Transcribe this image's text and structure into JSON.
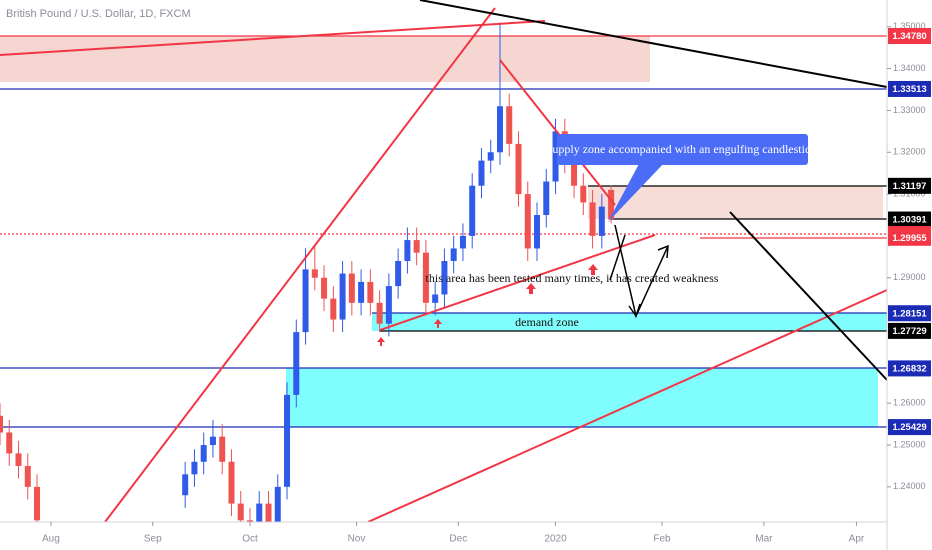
{
  "chart_data": {
    "type": "candlestick",
    "title": "British Pound / U.S. Dollar, 1D, FXCM",
    "x": [
      0,
      2,
      4,
      6,
      8,
      40,
      42,
      44,
      46,
      48,
      50,
      52,
      54,
      56,
      58,
      60,
      62,
      64,
      66,
      68,
      70,
      72,
      74,
      76,
      78,
      80,
      82,
      84,
      86,
      88,
      90,
      92,
      94,
      96,
      98,
      100,
      102,
      104,
      106,
      108,
      110,
      112,
      114,
      116,
      118,
      120,
      122,
      124,
      126,
      128,
      130,
      132
    ],
    "open": [
      1.257,
      1.253,
      1.248,
      1.245,
      1.24,
      1.238,
      1.243,
      1.246,
      1.25,
      1.252,
      1.246,
      1.236,
      1.232,
      1.228,
      1.236,
      1.23,
      1.24,
      1.262,
      1.277,
      1.292,
      1.29,
      1.285,
      1.28,
      1.291,
      1.284,
      1.289,
      1.284,
      1.279,
      1.288,
      1.294,
      1.299,
      1.296,
      1.284,
      1.286,
      1.294,
      1.297,
      1.3,
      1.312,
      1.318,
      1.32,
      1.331,
      1.322,
      1.31,
      1.297,
      1.305,
      1.313,
      1.325,
      1.318,
      1.312,
      1.308,
      1.3,
      1.311
    ],
    "high": [
      1.26,
      1.256,
      1.251,
      1.248,
      1.243,
      1.246,
      1.249,
      1.253,
      1.256,
      1.255,
      1.249,
      1.239,
      1.235,
      1.239,
      1.239,
      1.243,
      1.265,
      1.28,
      1.297,
      1.298,
      1.293,
      1.288,
      1.294,
      1.294,
      1.292,
      1.292,
      1.287,
      1.291,
      1.297,
      1.302,
      1.302,
      1.299,
      1.289,
      1.297,
      1.3,
      1.303,
      1.315,
      1.321,
      1.323,
      1.351,
      1.334,
      1.325,
      1.313,
      1.308,
      1.316,
      1.328,
      1.328,
      1.321,
      1.315,
      1.311,
      1.31,
      1.312
    ],
    "low": [
      1.25,
      1.245,
      1.242,
      1.237,
      1.229,
      1.235,
      1.24,
      1.243,
      1.247,
      1.243,
      1.233,
      1.229,
      1.226,
      1.225,
      1.227,
      1.227,
      1.237,
      1.259,
      1.274,
      1.287,
      1.282,
      1.277,
      1.277,
      1.281,
      1.281,
      1.281,
      1.277,
      1.276,
      1.285,
      1.291,
      1.293,
      1.281,
      1.281,
      1.283,
      1.291,
      1.294,
      1.297,
      1.309,
      1.315,
      1.317,
      1.319,
      1.307,
      1.294,
      1.294,
      1.302,
      1.31,
      1.315,
      1.309,
      1.305,
      1.297,
      1.297,
      1.303
    ],
    "close": [
      1.253,
      1.248,
      1.245,
      1.24,
      1.232,
      1.243,
      1.246,
      1.25,
      1.252,
      1.246,
      1.236,
      1.232,
      1.228,
      1.236,
      1.23,
      1.24,
      1.262,
      1.277,
      1.292,
      1.29,
      1.285,
      1.28,
      1.291,
      1.284,
      1.289,
      1.284,
      1.279,
      1.288,
      1.294,
      1.299,
      1.296,
      1.284,
      1.286,
      1.294,
      1.297,
      1.3,
      1.312,
      1.318,
      1.32,
      1.331,
      1.322,
      1.31,
      1.297,
      1.305,
      1.313,
      1.325,
      1.318,
      1.312,
      1.308,
      1.3,
      1.307,
      1.304
    ],
    "up_color": "#2f5be8",
    "down_color": "#ef5350",
    "xlim": [
      0,
      191.6
    ],
    "xticks": [
      {
        "value": 11,
        "label": "Aug"
      },
      {
        "value": 33,
        "label": "Sep"
      },
      {
        "value": 54,
        "label": "Oct"
      },
      {
        "value": 77,
        "label": "Nov"
      },
      {
        "value": 99,
        "label": "Dec"
      },
      {
        "value": 120,
        "label": "2020"
      },
      {
        "value": 143,
        "label": "Feb"
      },
      {
        "value": 165,
        "label": "Mar"
      },
      {
        "value": 185,
        "label": "Apr"
      }
    ],
    "ylim": [
      1.2316,
      1.3564
    ],
    "yticks": [
      {
        "value": 1.35,
        "label": "1.35000"
      },
      {
        "value": 1.34,
        "label": "1.34000"
      },
      {
        "value": 1.33,
        "label": "1.33000"
      },
      {
        "value": 1.32,
        "label": "1.32000"
      },
      {
        "value": 1.31,
        "label": "1.31000"
      },
      {
        "value": 1.29,
        "label": "1.29000"
      },
      {
        "value": 1.26,
        "label": "1.26000"
      },
      {
        "value": 1.25,
        "label": "1.25000"
      },
      {
        "value": 1.24,
        "label": "1.24000"
      }
    ],
    "levels": [
      {
        "value": 1.3478,
        "label": "1.34780",
        "color": "#f23645"
      },
      {
        "value": 1.33513,
        "color": "#1c2bb5"
      },
      {
        "value": 1.31197,
        "color": "#000000"
      },
      {
        "value": 1.30391,
        "color": "#000000"
      },
      {
        "value": 1.30045,
        "color": "#f23645"
      },
      {
        "value": 1.29955,
        "color": "#f23645"
      },
      {
        "value": 1.28151,
        "color": "#1c2bb5"
      },
      {
        "value": 1.27729,
        "color": "#000000"
      },
      {
        "value": 1.26832,
        "color": "#1c2bb5"
      },
      {
        "value": 1.25429,
        "color": "#1c2bb5"
      }
    ],
    "annotations": [
      "supply zone accompanied with an engulfing candlestick",
      "this area has been tested many times, it has created weakness",
      "demand zone"
    ]
  }
}
